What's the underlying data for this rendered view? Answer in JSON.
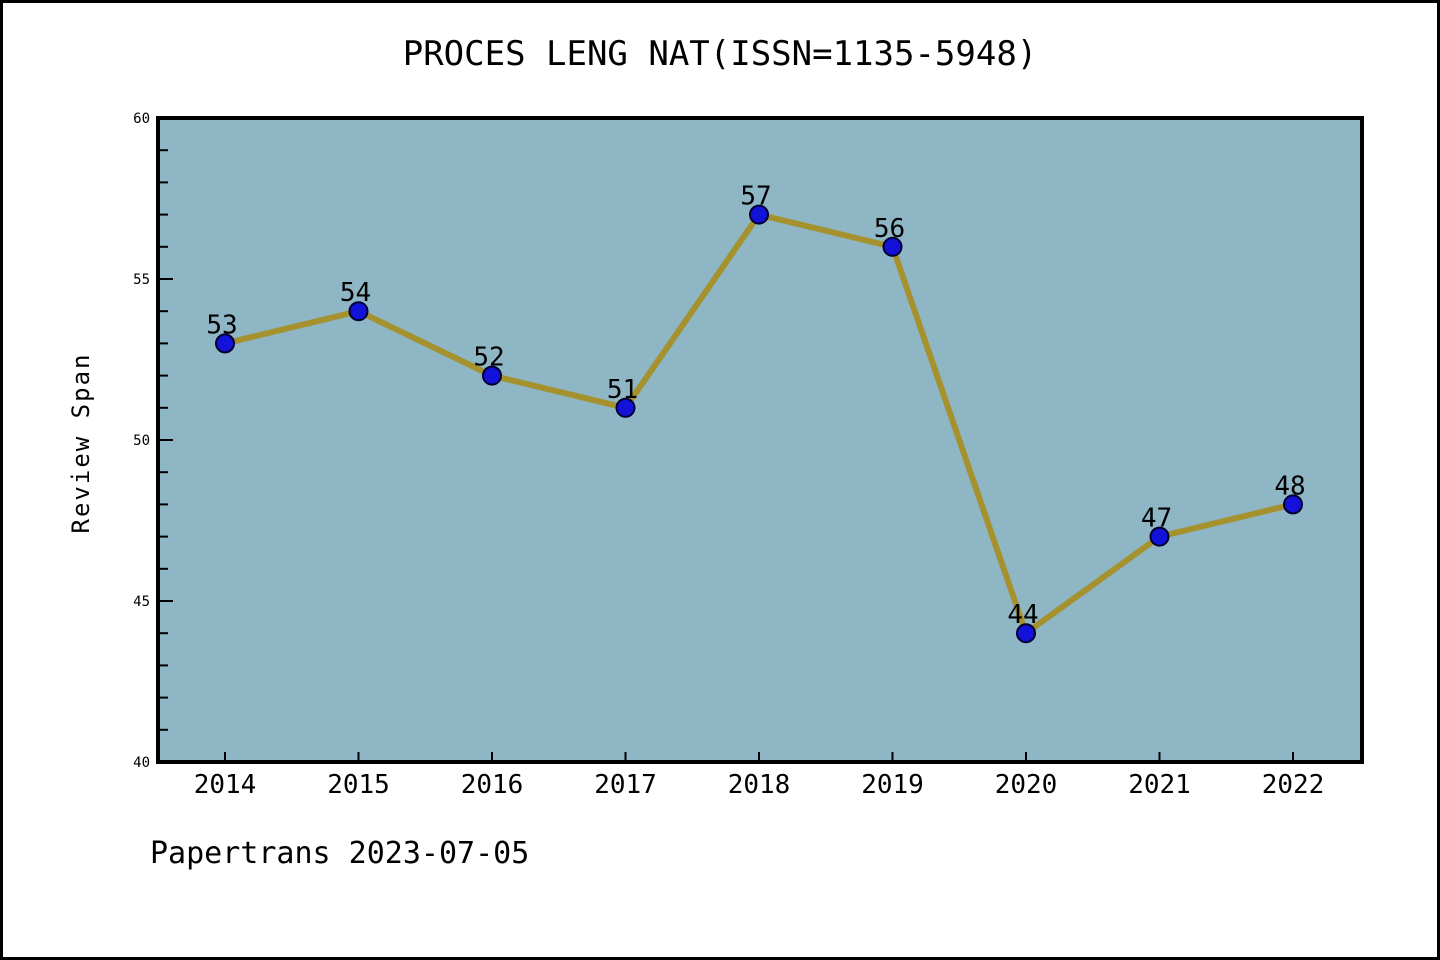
{
  "chart_data": {
    "type": "line",
    "title": "PROCES LENG NAT(ISSN=1135-5948)",
    "ylabel": "Review Span",
    "xlabel": "",
    "footer": "Papertrans 2023-07-05",
    "categories": [
      "2014",
      "2015",
      "2016",
      "2017",
      "2018",
      "2019",
      "2020",
      "2021",
      "2022"
    ],
    "values": [
      53,
      54,
      52,
      51,
      57,
      56,
      44,
      47,
      48
    ],
    "point_labels": [
      "53",
      "54",
      "52",
      "51",
      "57",
      "56",
      "44",
      "47",
      "48"
    ],
    "ylim": [
      40,
      60
    ],
    "ytick_labels": [
      40,
      45,
      50,
      55,
      60
    ],
    "ytick_minor_step": 1,
    "grid": false,
    "legend": false,
    "colors": {
      "figure_background": "#ffffff",
      "plot_background": "#8EB6C5",
      "line": "#A5912D",
      "marker": "#1212D9",
      "marker_edge": "#000033",
      "axis": "#000000",
      "text": "#000000"
    }
  }
}
